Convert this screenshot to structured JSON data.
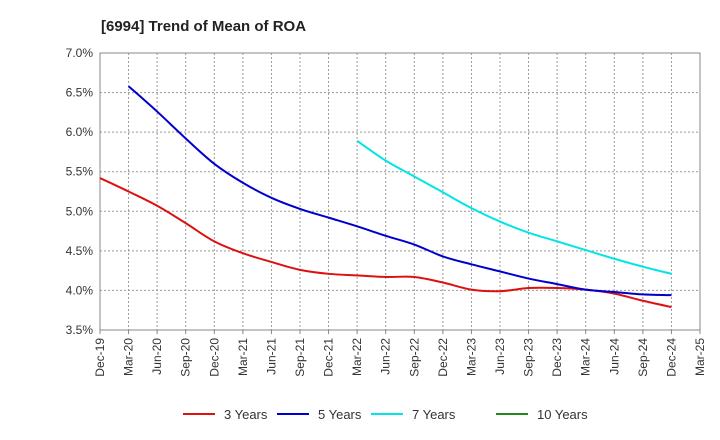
{
  "chart_data": {
    "type": "line",
    "title": "[6994]  Trend of Mean of ROA",
    "xlabel": "",
    "ylabel": "",
    "ylim": [
      3.5,
      7.0
    ],
    "y_ticks": [
      "7.0%",
      "6.5%",
      "6.0%",
      "5.5%",
      "5.0%",
      "4.5%",
      "4.0%",
      "3.5%"
    ],
    "y_tick_values": [
      7.0,
      6.5,
      6.0,
      5.5,
      5.0,
      4.5,
      4.0,
      3.5
    ],
    "categories": [
      "Dec-19",
      "Mar-20",
      "Jun-20",
      "Sep-20",
      "Dec-20",
      "Mar-21",
      "Jun-21",
      "Sep-21",
      "Dec-21",
      "Mar-22",
      "Jun-22",
      "Sep-22",
      "Dec-22",
      "Mar-23",
      "Jun-23",
      "Sep-23",
      "Dec-23",
      "Mar-24",
      "Jun-24",
      "Sep-24",
      "Dec-24",
      "Mar-25"
    ],
    "grid": true,
    "legend_position": "bottom",
    "series": [
      {
        "name": "3 Years",
        "color": "#dd1111",
        "values": [
          5.42,
          5.25,
          5.07,
          4.85,
          4.62,
          4.47,
          4.36,
          4.26,
          4.21,
          4.19,
          4.17,
          4.17,
          4.1,
          4.01,
          3.99,
          4.03,
          4.03,
          4.01,
          3.96,
          3.87,
          3.79,
          null
        ]
      },
      {
        "name": "5 Years",
        "color": "#0000cc",
        "values": [
          null,
          6.58,
          6.26,
          5.92,
          5.6,
          5.36,
          5.17,
          5.03,
          4.92,
          4.81,
          4.69,
          4.58,
          4.43,
          4.33,
          4.24,
          4.15,
          4.08,
          4.01,
          3.98,
          3.95,
          3.94,
          null
        ]
      },
      {
        "name": "7 Years",
        "color": "#00e5e5",
        "values": [
          null,
          null,
          null,
          null,
          null,
          null,
          null,
          null,
          null,
          5.89,
          5.64,
          5.44,
          5.24,
          5.04,
          4.87,
          4.73,
          4.62,
          4.51,
          4.4,
          4.3,
          4.21,
          null
        ]
      },
      {
        "name": "10 Years",
        "color": "#228822",
        "values": [
          null,
          null,
          null,
          null,
          null,
          null,
          null,
          null,
          null,
          null,
          null,
          null,
          null,
          null,
          null,
          null,
          null,
          null,
          null,
          null,
          null,
          null
        ]
      }
    ]
  }
}
